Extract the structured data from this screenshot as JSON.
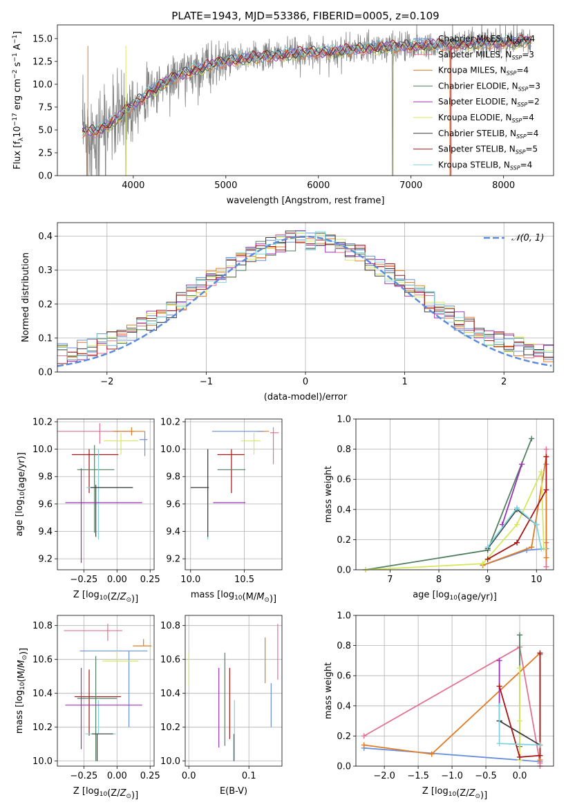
{
  "colors": {
    "Chabrier MILES": "#6a8fde",
    "Salpeter MILES": "#e2728f",
    "Kroupa MILES": "#e07b24",
    "Chabrier ELODIE": "#4f7f5f",
    "Salpeter ELODIE": "#9b30b5",
    "Kroupa ELODIE": "#d6e85a",
    "Chabrier STELIB": "#3a3a3a",
    "Salpeter STELIB": "#a81414",
    "Kroupa STELIB": "#7fd3dd",
    "spectrum": "#808080",
    "normal": "#5b8bd9"
  },
  "chart_data": [
    {
      "id": "spectrum",
      "type": "line",
      "title": "PLATE=1943, MJD=53386, FIBERID=0005, z=0.109",
      "xlabel": "wavelength [Angstrom, rest frame]",
      "ylabel": "Flux [f_λ10^-17 erg cm^-2 s^-1 A^-1]",
      "xlim": [
        3180,
        8540
      ],
      "ylim": [
        0,
        16.5
      ],
      "xticks": [
        4000,
        5000,
        6000,
        7000,
        8000
      ],
      "yticks": [
        0.0,
        2.5,
        5.0,
        7.5,
        10.0,
        12.5,
        15.0
      ],
      "legend": "top-right",
      "legend_entries": [
        {
          "name": "Chabrier MILES",
          "nssp": "4"
        },
        {
          "name": "Salpeter MILES",
          "nssp": "3"
        },
        {
          "name": "Kroupa MILES",
          "nssp": "4"
        },
        {
          "name": "Chabrier ELODIE",
          "nssp": "3"
        },
        {
          "name": "Salpeter ELODIE",
          "nssp": "2"
        },
        {
          "name": "Kroupa ELODIE",
          "nssp": "4"
        },
        {
          "name": "Chabrier STELIB",
          "nssp": "4"
        },
        {
          "name": "Salpeter STELIB",
          "nssp": "5"
        },
        {
          "name": "Kroupa STELIB",
          "nssp": "4"
        }
      ],
      "continuum": {
        "x": [
          3450,
          3600,
          3800,
          4000,
          4200,
          4400,
          4600,
          4800,
          5000,
          5200,
          5400,
          5600,
          5800,
          6000,
          6200,
          6400,
          6600,
          6800,
          7000,
          7200,
          7400,
          7600,
          7800,
          8000,
          8300
        ],
        "y": [
          4.8,
          4.9,
          6.0,
          7.8,
          9.3,
          10.5,
          11.4,
          12.0,
          12.5,
          12.8,
          13.0,
          13.2,
          13.4,
          13.5,
          13.6,
          13.8,
          14.0,
          14.1,
          14.2,
          14.3,
          14.3,
          14.4,
          14.5,
          14.6,
          14.7
        ]
      }
    },
    {
      "id": "residuals",
      "type": "histogram",
      "xlabel": "(data-model)/error",
      "ylabel": "Normed distribution",
      "xlim": [
        -2.5,
        2.5
      ],
      "ylim": [
        0,
        0.44
      ],
      "xticks": [
        -2,
        -1,
        0,
        1,
        2
      ],
      "yticks": [
        0.0,
        0.1,
        0.2,
        0.3,
        0.4
      ],
      "grid": true,
      "bins": {
        "start": -2.5,
        "width": 0.1,
        "count": 50
      },
      "legend_label": "𝒩(0, 1)",
      "legend": "top-right"
    },
    {
      "id": "age-vs-Z",
      "type": "errorbar",
      "xlabel": "Z [log10(Z/Z⊙)]",
      "ylabel": "age [log10(age/yr)]",
      "xlim": [
        -0.45,
        0.28
      ],
      "ylim": [
        9.12,
        10.22
      ],
      "xticks": [
        -0.25,
        0.0,
        0.25
      ],
      "xticklabels": [
        "−0.25",
        "0.00",
        "0.25"
      ],
      "yticks": [
        9.2,
        9.4,
        9.6,
        9.8,
        10.0,
        10.2
      ],
      "grid": true,
      "points": [
        {
          "s": "Salpeter MILES",
          "x": -0.13,
          "y": 10.13,
          "xe": [
            0.33,
            0.26
          ],
          "ye": [
            0.09,
            0.06
          ]
        },
        {
          "s": "Kroupa MILES",
          "x": 0.11,
          "y": 10.13,
          "xe": [
            0.14,
            0.1
          ],
          "ye": [
            0.03,
            0.03
          ]
        },
        {
          "s": "Chabrier MILES",
          "x": 0.21,
          "y": 10.07,
          "xe": [
            0.04,
            0.02
          ],
          "ye": [
            0.12,
            0.06
          ]
        },
        {
          "s": "Kroupa ELODIE",
          "x": 0.03,
          "y": 10.06,
          "xe": [
            0.13,
            0.13
          ],
          "ye": [
            0.1,
            0.06
          ]
        },
        {
          "s": "Salpeter STELIB",
          "x": -0.21,
          "y": 9.96,
          "xe": [
            0.13,
            0.22
          ],
          "ye": [
            0.28,
            0.04
          ]
        },
        {
          "s": "Chabrier ELODIE",
          "x": -0.17,
          "y": 9.85,
          "xe": [
            0.13,
            0.15
          ],
          "ye": [
            0.46,
            0.18
          ]
        },
        {
          "s": "Kroupa STELIB",
          "x": -0.14,
          "y": 9.72,
          "xe": [
            0.09,
            0.26
          ],
          "ye": [
            0.38,
            0.28
          ]
        },
        {
          "s": "Chabrier STELIB",
          "x": -0.16,
          "y": 9.72,
          "xe": [
            0.04,
            0.28
          ],
          "ye": [
            0.36,
            0.02
          ]
        },
        {
          "s": "Salpeter ELODIE",
          "x": -0.27,
          "y": 9.61,
          "xe": [
            0.12,
            0.46
          ],
          "ye": [
            0.44,
            0.25
          ]
        }
      ]
    },
    {
      "id": "age-vs-mass",
      "type": "errorbar",
      "xlabel": "mass [log10(M/M⊙)]",
      "ylabel": "",
      "xlim": [
        9.95,
        10.85
      ],
      "ylim": [
        9.12,
        10.22
      ],
      "xticks": [
        10.0,
        10.5
      ],
      "xticklabels": [
        "10.0",
        "10.5"
      ],
      "yticks": [
        9.2,
        9.4,
        9.6,
        9.8,
        10.0,
        10.2
      ],
      "grid": true,
      "points": [
        {
          "s": "Salpeter MILES",
          "x": 10.77,
          "y": 10.12,
          "xe": [
            0.03,
            0.05
          ],
          "ye": [
            0.23,
            0.04
          ]
        },
        {
          "s": "Kroupa MILES",
          "x": 10.68,
          "y": 10.13,
          "xe": [
            0.06,
            0.05
          ],
          "ye": [
            0.0,
            0.0
          ]
        },
        {
          "s": "Chabrier MILES",
          "x": 10.65,
          "y": 10.13,
          "xe": [
            0.45,
            0.03
          ],
          "ye": [
            0.0,
            0.0
          ]
        },
        {
          "s": "Kroupa ELODIE",
          "x": 10.59,
          "y": 10.06,
          "xe": [
            0.12,
            0.06
          ],
          "ye": [
            0.1,
            0.06
          ]
        },
        {
          "s": "Salpeter STELIB",
          "x": 10.38,
          "y": 9.96,
          "xe": [
            0.13,
            0.12
          ],
          "ye": [
            0.28,
            0.04
          ]
        },
        {
          "s": "Chabrier ELODIE",
          "x": 10.38,
          "y": 9.85,
          "xe": [
            0.13,
            0.13
          ],
          "ye": [
            0.0,
            0.0
          ]
        },
        {
          "s": "Kroupa STELIB",
          "x": 10.16,
          "y": 9.72,
          "xe": [
            0.0,
            0.0
          ],
          "ye": [
            0.38,
            0.28
          ]
        },
        {
          "s": "Chabrier STELIB",
          "x": 10.16,
          "y": 9.72,
          "xe": [
            0.16,
            0.01
          ],
          "ye": [
            0.36,
            0.28
          ]
        },
        {
          "s": "Salpeter ELODIE",
          "x": 10.33,
          "y": 9.61,
          "xe": [
            0.12,
            0.18
          ],
          "ye": [
            0.0,
            0.0
          ]
        }
      ]
    },
    {
      "id": "weight-vs-age",
      "type": "line",
      "xlabel": "age [log10(age/yr)]",
      "ylabel": "mass weight",
      "xlim": [
        6.3,
        10.35
      ],
      "ylim": [
        0,
        1.0
      ],
      "xticks": [
        7,
        8,
        9,
        10
      ],
      "yticks": [
        0.0,
        0.2,
        0.4,
        0.6,
        0.8,
        1.0
      ],
      "grid": true,
      "series": [
        {
          "s": "Chabrier MILES",
          "x": [
            8.9,
            9.8,
            10.2,
            10.2
          ],
          "y": [
            0.03,
            0.13,
            0.14,
            0.7
          ]
        },
        {
          "s": "Salpeter MILES",
          "x": [
            10.2,
            10.2,
            10.2
          ],
          "y": [
            0.8,
            0.02,
            0.18
          ]
        },
        {
          "s": "Kroupa MILES",
          "x": [
            8.9,
            9.9,
            10.2,
            10.2
          ],
          "y": [
            0.03,
            0.15,
            0.75,
            0.08
          ]
        },
        {
          "s": "Chabrier ELODIE",
          "x": [
            6.5,
            9.0,
            9.9
          ],
          "y": [
            0.0,
            0.13,
            0.87
          ]
        },
        {
          "s": "Salpeter ELODIE",
          "x": [
            9.3,
            9.7
          ],
          "y": [
            0.3,
            0.7
          ]
        },
        {
          "s": "Kroupa ELODIE",
          "x": [
            6.5,
            8.9,
            9.6,
            10.1,
            10.15
          ],
          "y": [
            0.0,
            0.04,
            0.3,
            0.65,
            0.14
          ]
        },
        {
          "s": "Chabrier STELIB",
          "x": [
            9.0,
            9.6,
            10.0
          ],
          "y": [
            0.14,
            0.4,
            0.3
          ]
        },
        {
          "s": "Salpeter STELIB",
          "x": [
            9.0,
            9.6,
            10.2,
            10.2
          ],
          "y": [
            0.07,
            0.18,
            0.53,
            0.75
          ]
        },
        {
          "s": "Kroupa STELIB",
          "x": [
            9.0,
            9.6,
            10.0,
            10.1
          ],
          "y": [
            0.15,
            0.41,
            0.3,
            0.14
          ]
        }
      ]
    },
    {
      "id": "mass-vs-Z",
      "type": "errorbar",
      "xlabel": "Z [log10(Z/Z⊙)]",
      "ylabel": "mass [log10(M/M⊙)]",
      "xlim": [
        -0.45,
        0.28
      ],
      "ylim": [
        9.97,
        10.86
      ],
      "xticks": [
        -0.25,
        0.0,
        0.25
      ],
      "xticklabels": [
        "−0.25",
        "0.00",
        "0.25"
      ],
      "yticks": [
        10.0,
        10.2,
        10.4,
        10.6,
        10.8
      ],
      "grid": true,
      "points": [
        {
          "s": "Salpeter MILES",
          "x": -0.07,
          "y": 10.77,
          "xe": [
            0.33,
            0.11
          ],
          "ye": [
            0.06,
            0.04
          ]
        },
        {
          "s": "Kroupa MILES",
          "x": 0.2,
          "y": 10.68,
          "xe": [
            0.08,
            0.06
          ],
          "ye": [
            0.0,
            0.04
          ]
        },
        {
          "s": "Chabrier MILES",
          "x": 0.09,
          "y": 10.65,
          "xe": [
            0.37,
            0.14
          ],
          "ye": [
            0.45,
            0.0
          ]
        },
        {
          "s": "Kroupa ELODIE",
          "x": 0.0,
          "y": 10.59,
          "xe": [
            0.11,
            0.16
          ],
          "ye": [
            0.0,
            0.06
          ]
        },
        {
          "s": "Salpeter STELIB",
          "x": -0.21,
          "y": 10.38,
          "xe": [
            0.11,
            0.24
          ],
          "ye": [
            0.23,
            0.16
          ]
        },
        {
          "s": "Chabrier ELODIE",
          "x": -0.16,
          "y": 10.37,
          "xe": [
            0.14,
            0.16
          ],
          "ye": [
            0.37,
            0.25
          ]
        },
        {
          "s": "Kroupa STELIB",
          "x": -0.14,
          "y": 10.16,
          "xe": [
            0.1,
            0.13
          ],
          "ye": [
            0.0,
            0.2
          ]
        },
        {
          "s": "Chabrier STELIB",
          "x": -0.15,
          "y": 10.16,
          "xe": [
            0.04,
            0.12
          ],
          "ye": [
            0.16,
            0.0
          ]
        },
        {
          "s": "Salpeter ELODIE",
          "x": -0.27,
          "y": 10.33,
          "xe": [
            0.12,
            0.46
          ],
          "ye": [
            0.26,
            0.22
          ]
        }
      ]
    },
    {
      "id": "mass-vs-ebv",
      "type": "errorbar",
      "xlabel": "E(B-V)",
      "ylabel": "",
      "xlim": [
        -0.006,
        0.155
      ],
      "ylim": [
        9.97,
        10.86
      ],
      "xticks": [
        0.0,
        0.1
      ],
      "xticklabels": [
        "0.0",
        "0.1"
      ],
      "yticks": [
        10.0,
        10.2,
        10.4,
        10.6,
        10.8
      ],
      "grid": true,
      "points": [
        {
          "s": "Kroupa ELODIE",
          "x": 0.0,
          "y": 10.55,
          "xe": [
            0,
            0
          ],
          "ye": [
            0.11,
            0.09
          ]
        },
        {
          "s": "Chabrier ELODIE",
          "x": 0.06,
          "y": 10.37,
          "xe": [
            0,
            0
          ],
          "ye": [
            0.28,
            0.27
          ]
        },
        {
          "s": "Salpeter ELODIE",
          "x": 0.05,
          "y": 10.32,
          "xe": [
            0,
            0
          ],
          "ye": [
            0.24,
            0.23
          ]
        },
        {
          "s": "Salpeter STELIB",
          "x": 0.068,
          "y": 10.36,
          "xe": [
            0,
            0
          ],
          "ye": [
            0.23,
            0.19
          ]
        },
        {
          "s": "Chabrier STELIB",
          "x": 0.075,
          "y": 10.16,
          "xe": [
            0,
            0
          ],
          "ye": [
            0.16,
            0.0
          ]
        },
        {
          "s": "Kroupa STELIB",
          "x": 0.076,
          "y": 10.16,
          "xe": [
            0,
            0
          ],
          "ye": [
            0.16,
            0.2
          ]
        },
        {
          "s": "Kroupa MILES",
          "x": 0.127,
          "y": 10.6,
          "xe": [
            0,
            0
          ],
          "ye": [
            0.14,
            0.13
          ]
        },
        {
          "s": "Chabrier MILES",
          "x": 0.137,
          "y": 10.33,
          "xe": [
            0,
            0
          ],
          "ye": [
            0.13,
            0.13
          ]
        },
        {
          "s": "Salpeter MILES",
          "x": 0.148,
          "y": 10.64,
          "xe": [
            0,
            0
          ],
          "ye": [
            0.16,
            0.17
          ]
        }
      ]
    },
    {
      "id": "weight-vs-Z",
      "type": "line",
      "xlabel": "Z [log10(Z/Z⊙)]",
      "ylabel": "mass weight",
      "xlim": [
        -2.42,
        0.5
      ],
      "ylim": [
        0,
        1.0
      ],
      "xticks": [
        -2.0,
        -1.5,
        -1.0,
        -0.5,
        0.0
      ],
      "xticklabels": [
        "−2.0",
        "−1.5",
        "−1.0",
        "−0.5",
        "0.0"
      ],
      "yticks": [
        0.0,
        0.2,
        0.4,
        0.6,
        0.8,
        1.0
      ],
      "grid": true,
      "series": [
        {
          "s": "Chabrier MILES",
          "x": [
            -2.3,
            0.3,
            0.3
          ],
          "y": [
            0.12,
            0.03,
            0.74
          ]
        },
        {
          "s": "Salpeter MILES",
          "x": [
            -2.3,
            0.0,
            0.3,
            0.3
          ],
          "y": [
            0.2,
            0.79,
            0.02,
            0.0
          ]
        },
        {
          "s": "Kroupa MILES",
          "x": [
            -2.3,
            -1.3,
            0.3,
            0.3
          ],
          "y": [
            0.14,
            0.08,
            0.75,
            0.04
          ]
        },
        {
          "s": "Chabrier ELODIE",
          "x": [
            0.0,
            0.0
          ],
          "y": [
            0.87,
            0.13
          ]
        },
        {
          "s": "Salpeter ELODIE",
          "x": [
            -0.3,
            -0.3
          ],
          "y": [
            0.3,
            0.7
          ]
        },
        {
          "s": "Kroupa ELODIE",
          "x": [
            0.0,
            0.0,
            0.0
          ],
          "y": [
            0.04,
            0.65,
            0.3
          ]
        },
        {
          "s": "Chabrier STELIB",
          "x": [
            -0.3,
            0.3
          ],
          "y": [
            0.3,
            0.14
          ]
        },
        {
          "s": "Salpeter STELIB",
          "x": [
            -0.3,
            0.0,
            0.3,
            0.3
          ],
          "y": [
            0.53,
            0.06,
            0.07,
            0.75
          ]
        },
        {
          "s": "Kroupa STELIB",
          "x": [
            -0.3,
            -0.3,
            0.3
          ],
          "y": [
            0.4,
            0.15,
            0.14
          ]
        }
      ]
    }
  ]
}
